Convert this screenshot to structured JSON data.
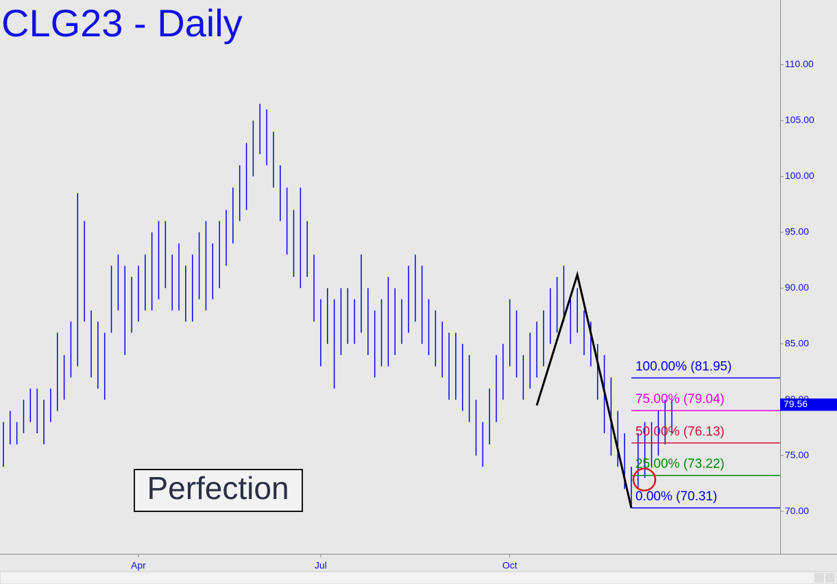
{
  "chart_data": {
    "type": "range-bar",
    "title": "CLG23 - Daily",
    "annotation": "Perfection",
    "color": "#0000ee",
    "categories": [
      null,
      null,
      null,
      null,
      null,
      null,
      null,
      null,
      null,
      null,
      null,
      null,
      null,
      null,
      null,
      null,
      null,
      null,
      null,
      null,
      "Apr",
      null,
      null,
      null,
      null,
      null,
      null,
      null,
      null,
      null,
      null,
      null,
      null,
      null,
      null,
      null,
      null,
      null,
      null,
      null,
      null,
      null,
      null,
      null,
      null,
      null,
      null,
      "Jul",
      null,
      null,
      null,
      null,
      null,
      null,
      null,
      null,
      null,
      null,
      null,
      null,
      null,
      null,
      null,
      null,
      null,
      null,
      null,
      null,
      null,
      null,
      null,
      null,
      null,
      null,
      null,
      "Oct",
      null,
      null,
      null,
      null,
      null,
      null,
      null,
      null,
      null,
      null,
      null,
      null,
      null,
      null,
      null,
      null,
      null,
      null,
      null,
      null,
      null,
      null,
      null,
      null
    ],
    "highs": [
      78,
      79,
      78,
      80,
      81,
      81,
      80,
      81,
      86,
      84,
      87,
      98.5,
      96,
      88,
      87,
      86,
      92,
      93,
      92,
      91,
      92,
      93,
      95,
      96,
      96,
      93,
      94,
      92,
      93,
      95,
      96,
      94,
      96,
      97,
      99,
      101,
      103,
      105,
      106.5,
      106,
      104,
      101,
      99,
      97,
      99,
      96,
      93,
      89,
      90,
      89,
      90,
      90,
      89,
      93,
      90,
      88,
      89,
      91,
      90,
      89,
      92,
      93,
      92,
      89,
      88,
      87,
      86,
      86,
      85,
      84,
      80,
      78,
      81,
      84,
      85,
      89,
      88,
      84,
      86,
      87,
      88,
      90,
      91,
      92,
      89,
      90,
      88,
      87,
      85,
      84,
      82,
      79,
      77,
      74,
      77,
      78,
      78,
      79,
      80,
      80
    ],
    "lows": [
      74,
      76,
      76,
      77,
      78,
      77,
      76,
      78,
      79,
      80,
      82,
      83,
      87,
      82,
      81,
      80,
      86,
      88,
      84,
      86,
      87,
      88,
      88,
      89,
      90,
      88,
      88,
      87,
      87,
      89,
      88,
      89,
      90,
      92,
      94,
      96,
      97,
      100,
      102,
      101,
      99,
      96,
      93,
      91,
      90,
      91,
      87,
      83,
      85,
      81,
      84,
      85,
      85,
      86,
      84,
      82,
      83,
      83,
      84,
      85,
      86,
      87,
      85,
      84,
      83,
      82,
      80,
      80,
      79,
      78,
      75,
      74,
      76,
      78,
      80,
      83,
      82,
      80,
      81,
      82,
      83,
      85,
      86,
      87,
      85,
      86,
      84,
      83,
      80,
      77,
      75,
      74,
      72,
      70.31,
      72,
      73,
      74,
      75,
      76,
      77
    ],
    "pattern": {
      "color": "#000000",
      "points": [
        79,
        85,
        93
      ],
      "values": [
        79.5,
        91.2,
        70.31
      ]
    },
    "levels": [
      {
        "label": "100.00% (81.95)",
        "value": 81.95,
        "color": "#0000ee"
      },
      {
        "label": "75.00% (79.04)",
        "value": 79.04,
        "color": "#ee00ee"
      },
      {
        "label": "50.00% (76.13)",
        "value": 76.13,
        "color": "#d0103a"
      },
      {
        "label": "25.00% (73.22)",
        "value": 73.22,
        "color": "#008800"
      },
      {
        "label": "0.00% (70.31)",
        "value": 70.31,
        "color": "#0000ee"
      }
    ],
    "last_price": 79.56,
    "ylim": [
      66.2,
      115.8
    ],
    "yticks": [
      {
        "value": 70,
        "label": "70.00"
      },
      {
        "value": 75,
        "label": "75.00"
      },
      {
        "value": 80,
        "label": "80.00"
      },
      {
        "value": 85,
        "label": "85.00"
      },
      {
        "value": 90,
        "label": "90.00"
      },
      {
        "value": 95,
        "label": "95.00"
      },
      {
        "value": 100,
        "label": "100.00"
      },
      {
        "value": 105,
        "label": "105.00"
      },
      {
        "value": 110,
        "label": "110.00"
      }
    ]
  }
}
